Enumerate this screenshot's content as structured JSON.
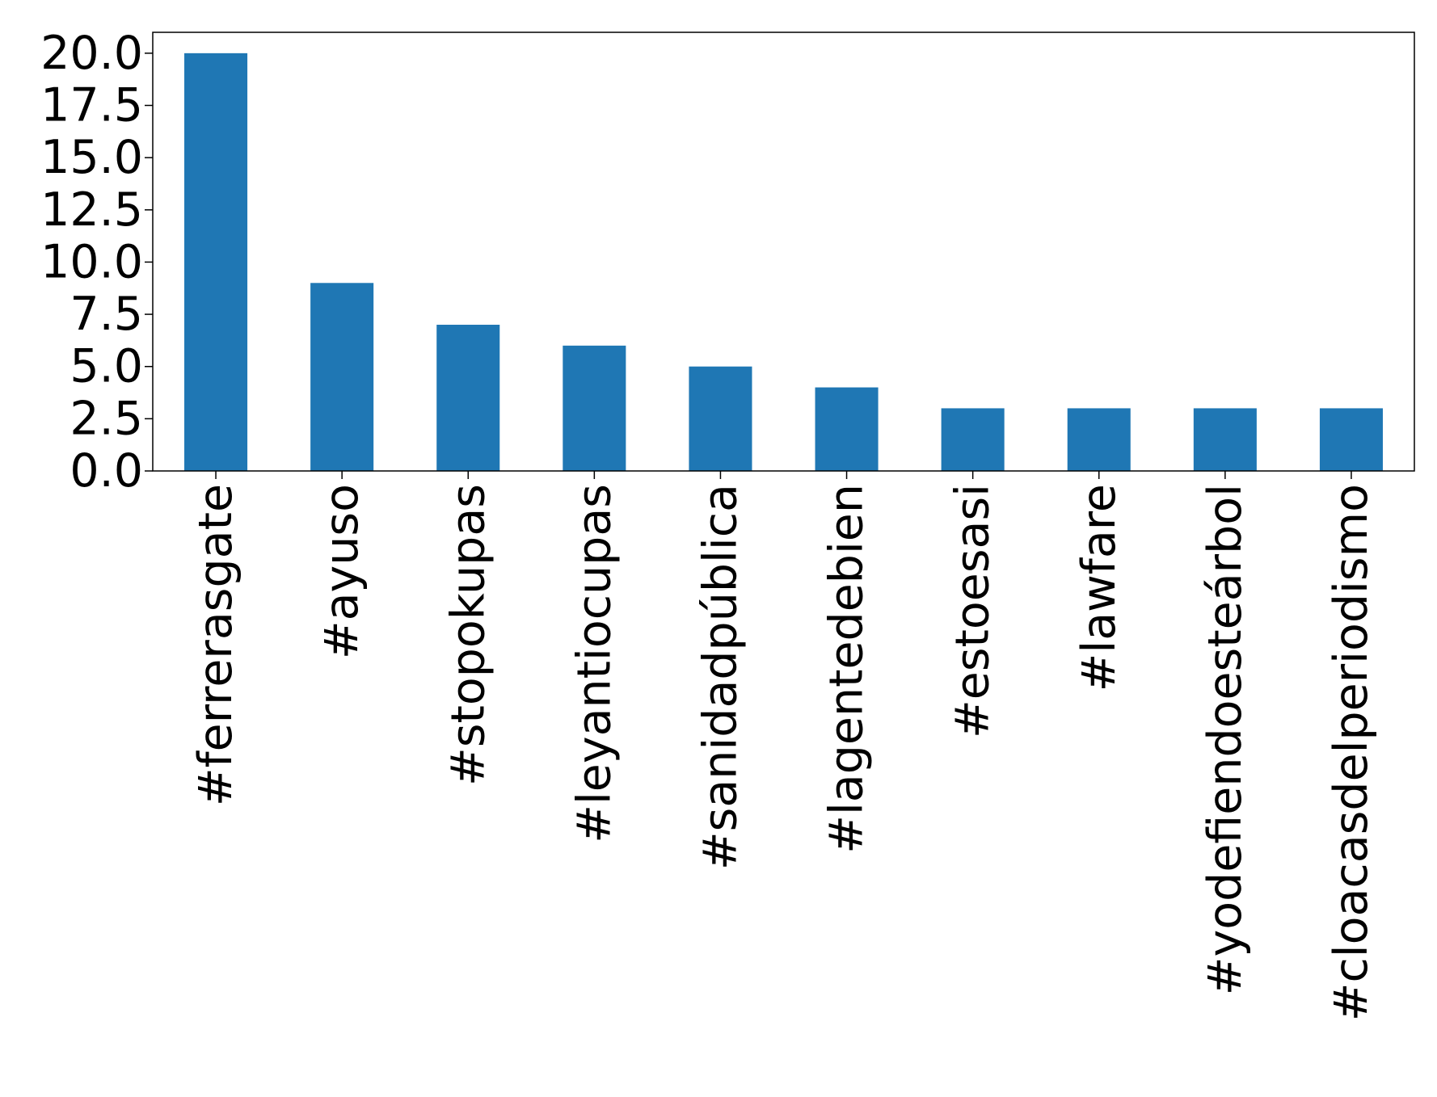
{
  "chart_data": {
    "type": "bar",
    "title": "",
    "xlabel": "",
    "ylabel": "",
    "categories": [
      "#ferrerasgate",
      "#ayuso",
      "#stopokupas",
      "#leyantiocupas",
      "#sanidadpública",
      "#lagentedebien",
      "#estoesasi",
      "#lawfare",
      "#yodefiendoesteárbol",
      "#cloacasdelperiodismo"
    ],
    "values": [
      20,
      9,
      7,
      6,
      5,
      4,
      3,
      3,
      3,
      3
    ],
    "ylim": [
      0,
      21
    ],
    "yticks": [
      0.0,
      2.5,
      5.0,
      7.5,
      10.0,
      12.5,
      15.0,
      17.5,
      20.0
    ],
    "ytick_labels": [
      "0.0",
      "2.5",
      "5.0",
      "7.5",
      "10.0",
      "12.5",
      "15.0",
      "17.5",
      "20.0"
    ],
    "grid": false,
    "legend": "none",
    "bar_color": "#1f77b4"
  }
}
